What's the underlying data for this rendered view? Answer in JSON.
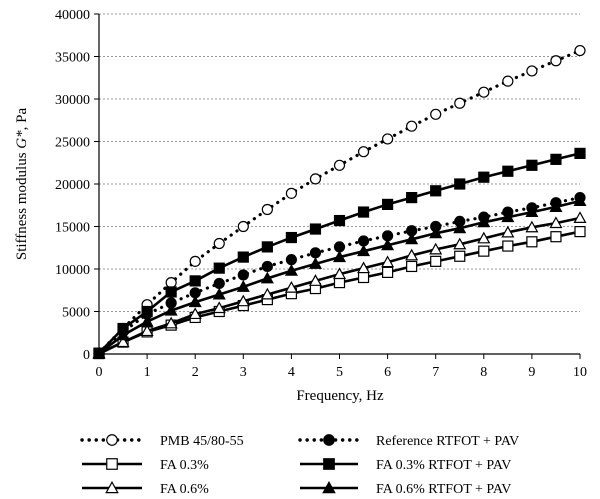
{
  "chart_data": {
    "type": "line",
    "title": "",
    "xlabel": "Frequency, Hz",
    "ylabel": "Stiffness modulus G*, Pa",
    "ylabel_main": "Stiffness modulus ",
    "ylabel_var": "G*",
    "ylabel_unit": ", Pa",
    "xlim": [
      0,
      10
    ],
    "ylim": [
      0,
      40000
    ],
    "x_ticks": [
      0,
      1,
      2,
      3,
      4,
      5,
      6,
      7,
      8,
      9,
      10
    ],
    "y_ticks": [
      0,
      5000,
      10000,
      15000,
      20000,
      25000,
      30000,
      35000,
      40000
    ],
    "grid": "horizontal dotted",
    "legend_position": "bottom",
    "x": [
      0,
      0.1,
      0.5,
      1,
      1.5,
      2,
      2.5,
      3,
      3.5,
      4,
      4.5,
      5,
      5.5,
      6,
      6.5,
      7,
      7.5,
      8,
      8.5,
      9,
      9.5,
      10
    ],
    "series": [
      {
        "name": "PMB 45/80-55",
        "line": "dotted",
        "marker": "circle-open",
        "values": [
          100,
          700,
          3000,
          5800,
          8400,
          10900,
          13000,
          15000,
          17000,
          18900,
          20600,
          22200,
          23800,
          25300,
          26800,
          28200,
          29500,
          30800,
          32100,
          33300,
          34500,
          35700
        ]
      },
      {
        "name": "Reference RTFOT + PAV",
        "line": "dotted",
        "marker": "circle-filled",
        "values": [
          80,
          500,
          2600,
          4700,
          6000,
          7200,
          8300,
          9300,
          10300,
          11100,
          11900,
          12600,
          13300,
          13900,
          14500,
          15000,
          15600,
          16100,
          16700,
          17200,
          17800,
          18400
        ]
      },
      {
        "name": "FA 0.3%",
        "line": "solid",
        "marker": "square-open",
        "values": [
          50,
          300,
          1400,
          2600,
          3400,
          4300,
          5000,
          5700,
          6400,
          7100,
          7700,
          8400,
          9000,
          9600,
          10300,
          10900,
          11500,
          12100,
          12700,
          13200,
          13800,
          14400
        ]
      },
      {
        "name": "FA 0.3% RTFOT + PAV",
        "line": "solid",
        "marker": "square-filled",
        "values": [
          100,
          700,
          3000,
          5000,
          7300,
          8600,
          10100,
          11400,
          12600,
          13700,
          14700,
          15700,
          16700,
          17600,
          18400,
          19200,
          20000,
          20800,
          21500,
          22200,
          22900,
          23600
        ]
      },
      {
        "name": "FA 0.6%",
        "line": "solid",
        "marker": "triangle-open",
        "values": [
          50,
          300,
          1400,
          2700,
          3600,
          4700,
          5400,
          6200,
          7000,
          7800,
          8600,
          9400,
          10100,
          10800,
          11600,
          12300,
          12900,
          13600,
          14300,
          14900,
          15400,
          16000
        ]
      },
      {
        "name": "FA 0.6% RTFOT + PAV",
        "line": "solid",
        "marker": "triangle-filled",
        "values": [
          80,
          500,
          2200,
          3800,
          5100,
          6100,
          7000,
          7900,
          8900,
          9800,
          10600,
          11400,
          12100,
          12800,
          13500,
          14200,
          14800,
          15500,
          16100,
          16700,
          17300,
          18000
        ]
      }
    ]
  }
}
